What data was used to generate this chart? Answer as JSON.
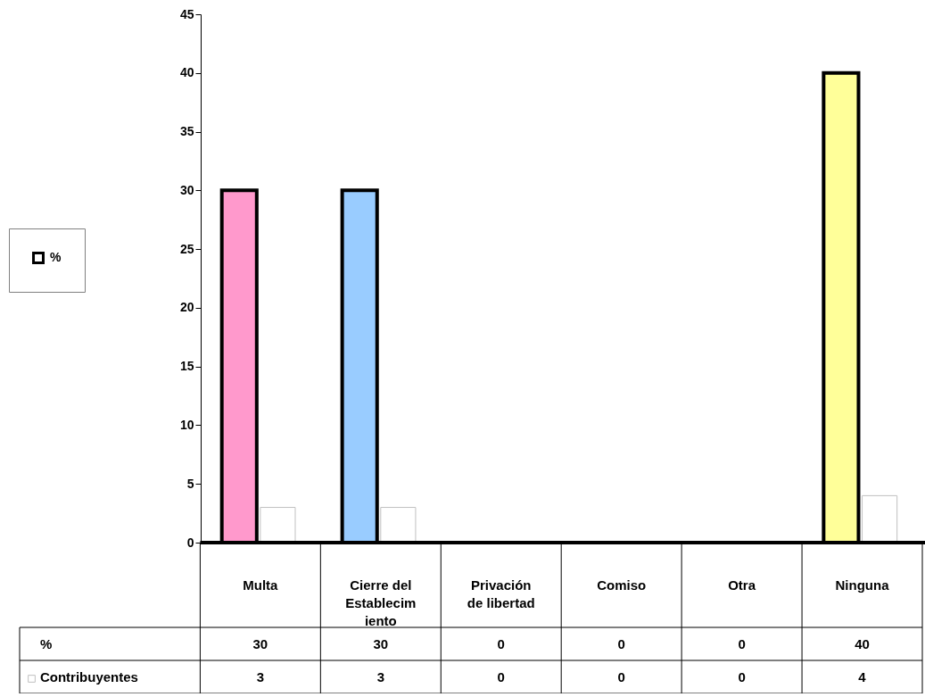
{
  "chart_data": {
    "type": "bar",
    "categories": [
      "Multa",
      "Cierre del Establecimiento",
      "Privación de libertad",
      "Comiso",
      "Otra",
      "Ninguna"
    ],
    "series": [
      {
        "name": "%",
        "color": "#ffffff",
        "colors": [
          "#ff99cc",
          "#99ccff",
          "#ffffff",
          "#ffffff",
          "#ffffff",
          "#ffff99"
        ],
        "values": [
          30,
          30,
          0,
          0,
          0,
          40
        ]
      },
      {
        "name": "Contribuyentes",
        "color": "#ffffff",
        "values": [
          3,
          3,
          0,
          0,
          0,
          4
        ]
      }
    ],
    "ylim": [
      0,
      45
    ],
    "yticks": [
      0,
      5,
      10,
      15,
      20,
      25,
      30,
      35,
      40,
      45
    ],
    "grid": false,
    "legend": "left",
    "data_labels": true
  }
}
